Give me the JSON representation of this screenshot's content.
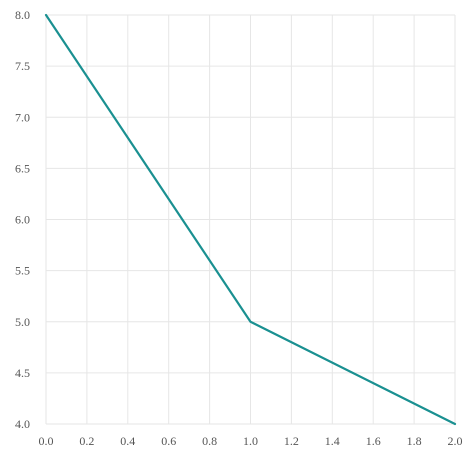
{
  "chart_data": {
    "type": "line",
    "title": "",
    "xlabel": "",
    "ylabel": "",
    "xlim": [
      0.0,
      2.0
    ],
    "ylim": [
      4.0,
      8.0
    ],
    "x_ticks": [
      "0.0",
      "0.2",
      "0.4",
      "0.6",
      "0.8",
      "1.0",
      "1.2",
      "1.4",
      "1.6",
      "1.8",
      "2.0"
    ],
    "y_ticks": [
      "4.0",
      "4.5",
      "5.0",
      "5.5",
      "6.0",
      "6.5",
      "7.0",
      "7.5",
      "8.0"
    ],
    "grid": true,
    "legend": "none",
    "series": [
      {
        "color": "#1a9091",
        "x": [
          0.0,
          1.0,
          2.0
        ],
        "y": [
          8.0,
          5.0,
          4.0
        ]
      }
    ]
  }
}
